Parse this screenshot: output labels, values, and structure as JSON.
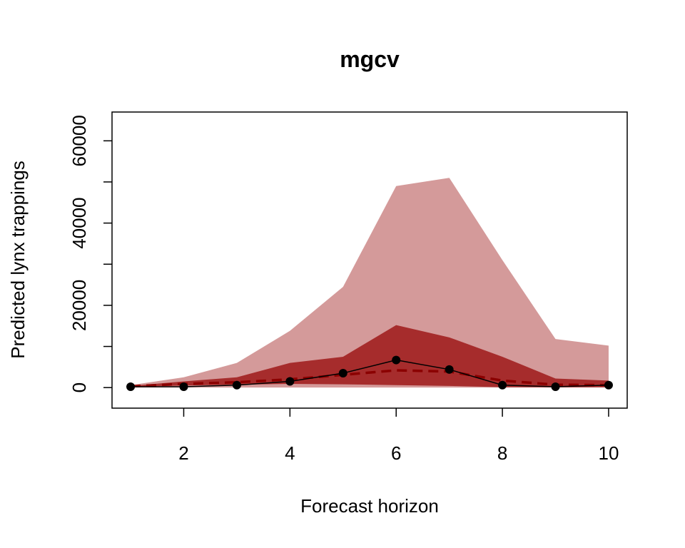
{
  "chart_data": {
    "type": "area",
    "title": "mgcv",
    "xlabel": "Forecast horizon",
    "ylabel": "Predicted lynx trappings",
    "xlim": [
      0.65,
      10.35
    ],
    "ylim": [
      -5000,
      67000
    ],
    "x_ticks": [
      2,
      4,
      6,
      8,
      10
    ],
    "y_ticks": [
      0,
      10000,
      20000,
      30000,
      40000,
      50000,
      60000
    ],
    "y_tick_labels": [
      "0",
      "",
      "20000",
      "",
      "40000",
      "",
      "60000"
    ],
    "x": [
      1,
      2,
      3,
      4,
      5,
      6,
      7,
      8,
      9,
      10
    ],
    "outer_band": {
      "lower": [
        0,
        0,
        0,
        0,
        0,
        0,
        0,
        0,
        0,
        0
      ],
      "upper": [
        600,
        2500,
        6000,
        13800,
        24500,
        49000,
        51000,
        31000,
        11800,
        10200
      ],
      "color": "#d49a9a"
    },
    "inner_band": {
      "lower": [
        200,
        500,
        700,
        900,
        800,
        600,
        400,
        100,
        100,
        100
      ],
      "upper": [
        400,
        1500,
        2500,
        6000,
        7500,
        15200,
        12200,
        7500,
        2200,
        1700
      ],
      "color": "#a62c2c"
    },
    "series": [
      {
        "type": "dashed-line",
        "color": "#8b0000",
        "values": [
          300,
          900,
          1300,
          2000,
          3100,
          4200,
          3900,
          1700,
          700,
          600
        ]
      },
      {
        "type": "line-with-points",
        "color": "#000000",
        "values": [
          200,
          200,
          600,
          1500,
          3500,
          6700,
          4400,
          600,
          200,
          600
        ]
      }
    ]
  }
}
